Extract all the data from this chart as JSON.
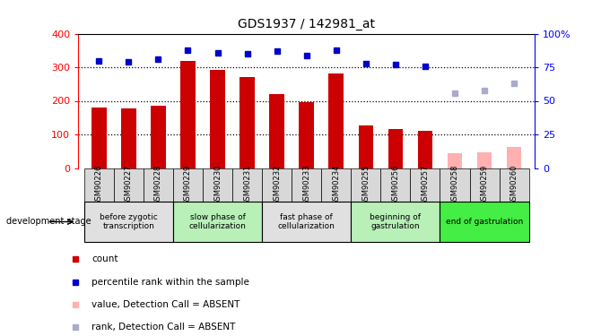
{
  "title": "GDS1937 / 142981_at",
  "samples": [
    "GSM90226",
    "GSM90227",
    "GSM90228",
    "GSM90229",
    "GSM90230",
    "GSM90231",
    "GSM90232",
    "GSM90233",
    "GSM90234",
    "GSM90255",
    "GSM90256",
    "GSM90257",
    "GSM90258",
    "GSM90259",
    "GSM90260"
  ],
  "bar_values": [
    180,
    178,
    185,
    320,
    292,
    272,
    220,
    196,
    282,
    128,
    115,
    110,
    null,
    null,
    null
  ],
  "bar_values_absent": [
    null,
    null,
    null,
    null,
    null,
    null,
    null,
    null,
    null,
    null,
    null,
    null,
    45,
    47,
    62
  ],
  "rank_values": [
    80,
    79,
    81,
    88,
    86,
    85,
    87,
    84,
    88,
    78,
    77,
    76,
    null,
    null,
    null
  ],
  "rank_values_absent": [
    null,
    null,
    null,
    null,
    null,
    null,
    null,
    null,
    null,
    null,
    null,
    null,
    56,
    58,
    63
  ],
  "bar_color": "#cc0000",
  "bar_absent_color": "#ffb0b0",
  "rank_color": "#0000cc",
  "rank_absent_color": "#aaaacc",
  "ylim_left": [
    0,
    400
  ],
  "ylim_right": [
    0,
    100
  ],
  "yticks_left": [
    0,
    100,
    200,
    300,
    400
  ],
  "yticks_right": [
    0,
    25,
    50,
    75,
    100
  ],
  "ytick_labels_right": [
    "0",
    "25",
    "50",
    "75",
    "100%"
  ],
  "stage_groups": [
    {
      "label": "before zygotic\ntranscription",
      "start": 0,
      "end": 3,
      "color": "#e0e0e0"
    },
    {
      "label": "slow phase of\ncellularization",
      "start": 3,
      "end": 6,
      "color": "#b8f0b8"
    },
    {
      "label": "fast phase of\ncellularization",
      "start": 6,
      "end": 9,
      "color": "#e0e0e0"
    },
    {
      "label": "beginning of\ngastrulation",
      "start": 9,
      "end": 12,
      "color": "#b8f0b8"
    },
    {
      "label": "end of gastrulation",
      "start": 12,
      "end": 15,
      "color": "#44ee44"
    }
  ],
  "legend_items": [
    {
      "label": "count",
      "color": "#cc0000"
    },
    {
      "label": "percentile rank within the sample",
      "color": "#0000cc"
    },
    {
      "label": "value, Detection Call = ABSENT",
      "color": "#ffb0b0"
    },
    {
      "label": "rank, Detection Call = ABSENT",
      "color": "#aaaacc"
    }
  ],
  "fig_width": 6.7,
  "fig_height": 3.75,
  "dpi": 100
}
